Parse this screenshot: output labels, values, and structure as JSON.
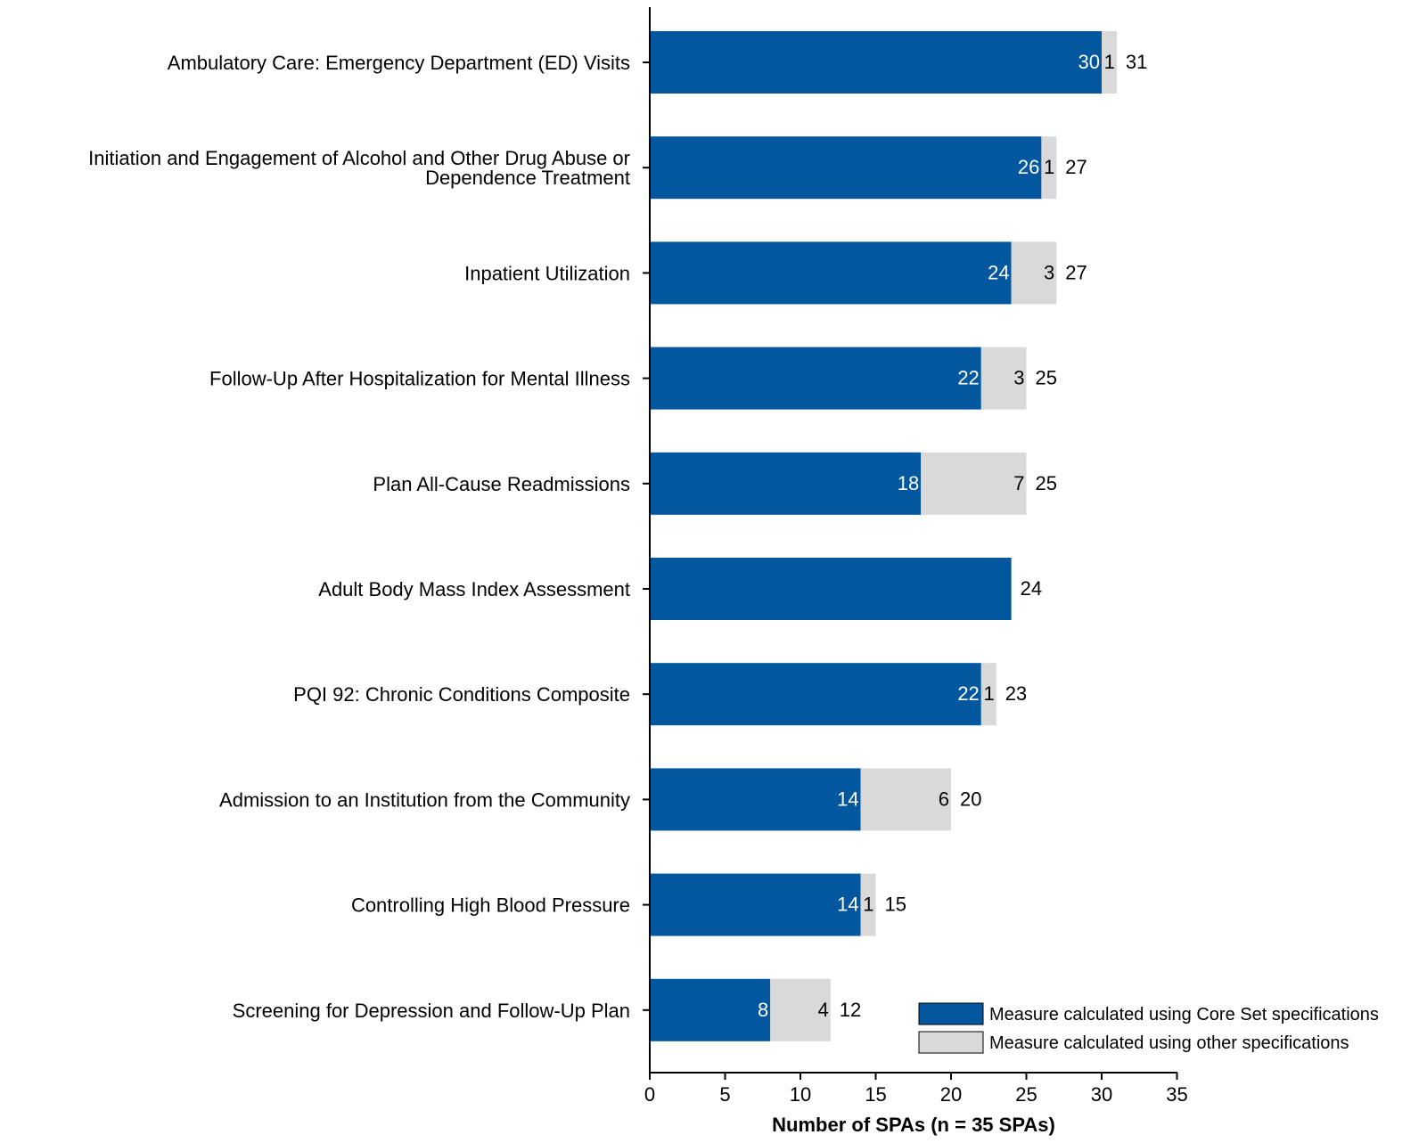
{
  "chart_data": {
    "type": "bar",
    "orientation": "horizontal",
    "stacked": true,
    "categories": [
      "Ambulatory Care: Emergency Department (ED) Visits",
      "Initiation and Engagement of Alcohol and Other Drug Abuse or Dependence Treatment",
      "Inpatient Utilization",
      "Follow-Up After Hospitalization for Mental Illness",
      "Plan All-Cause Readmissions",
      "Adult Body Mass Index Assessment",
      "PQI 92: Chronic Conditions Composite",
      "Admission to an Institution from the Community",
      "Controlling High Blood Pressure",
      "Screening for Depression and Follow-Up Plan"
    ],
    "category_lines": [
      [
        "Ambulatory Care: Emergency Department (ED) Visits"
      ],
      [
        "Initiation and Engagement of Alcohol and Other Drug Abuse or",
        "Dependence Treatment"
      ],
      [
        "Inpatient Utilization"
      ],
      [
        "Follow-Up After Hospitalization for Mental Illness"
      ],
      [
        "Plan All-Cause Readmissions"
      ],
      [
        "Adult Body Mass Index Assessment"
      ],
      [
        "PQI 92: Chronic Conditions Composite"
      ],
      [
        "Admission to an Institution from the Community"
      ],
      [
        "Controlling High Blood Pressure"
      ],
      [
        "Screening for Depression and Follow-Up Plan"
      ]
    ],
    "series": [
      {
        "name": "Measure calculated using Core Set specifications",
        "color": "#02579E",
        "values": [
          30,
          26,
          24,
          22,
          18,
          24,
          22,
          14,
          14,
          8
        ]
      },
      {
        "name": "Measure calculated using other specifications",
        "color": "#D9D9D9",
        "values": [
          1,
          1,
          3,
          3,
          7,
          0,
          1,
          6,
          1,
          4
        ]
      }
    ],
    "totals": [
      31,
      27,
      27,
      25,
      25,
      24,
      23,
      20,
      15,
      12
    ],
    "xlabel": "Number of SPAs (n = 35 SPAs)",
    "xlim": [
      0,
      35
    ],
    "xticks": [
      0,
      5,
      10,
      15,
      20,
      25,
      30,
      35
    ],
    "grid": false,
    "legend_position": "bottom-right"
  }
}
